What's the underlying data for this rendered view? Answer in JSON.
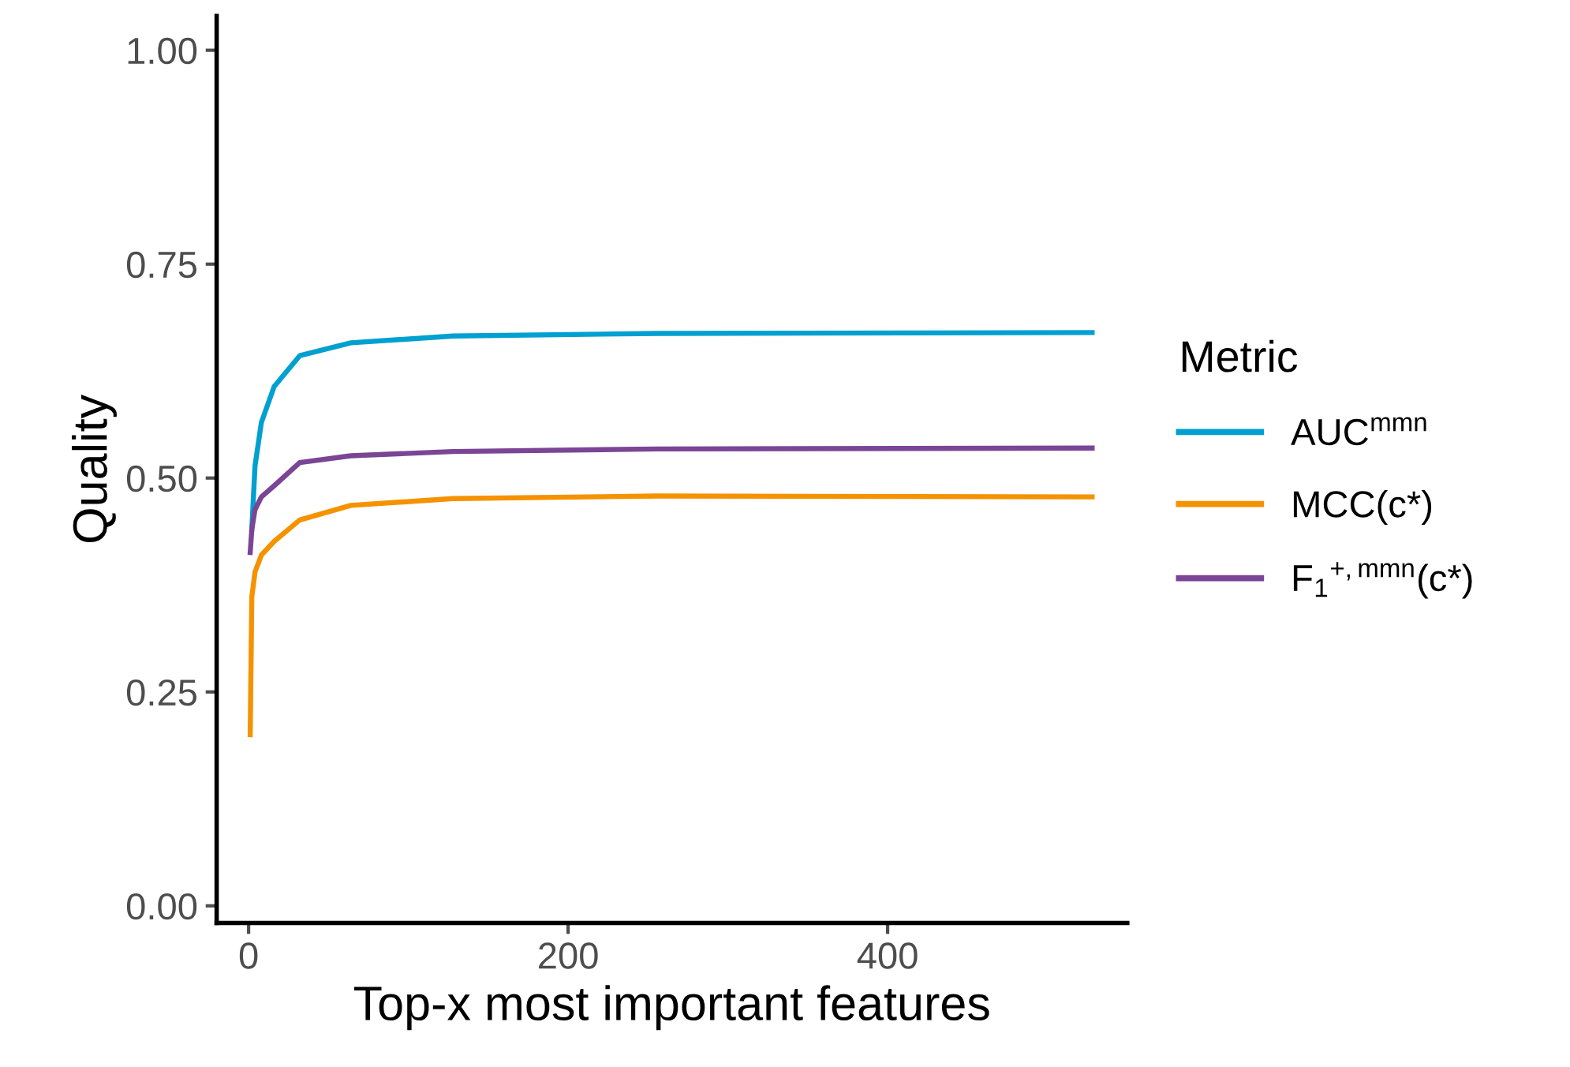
{
  "chart_data": {
    "type": "line",
    "xlabel": "Top-x most important features",
    "ylabel": "Quality",
    "legend_title": "Metric",
    "x": [
      1,
      2,
      4,
      8,
      16,
      32,
      64,
      128,
      256,
      528
    ],
    "series": [
      {
        "name": "AUC$^{mmn}$",
        "color": "#00a0d0",
        "values": [
          null,
          0.44,
          0.514,
          0.565,
          0.607,
          0.643,
          0.658,
          0.666,
          0.669,
          0.67
        ]
      },
      {
        "name": "MCC(c*)",
        "color": "#f59200",
        "values": [
          0.2,
          0.361,
          0.39,
          0.41,
          0.426,
          0.451,
          0.468,
          0.476,
          0.479,
          0.478
        ]
      },
      {
        "name": "F$_{1}$$^{+,mmn}$(c*)",
        "color": "#7b4596",
        "values": [
          0.413,
          0.44,
          0.463,
          0.478,
          0.491,
          0.518,
          0.526,
          0.531,
          0.534,
          0.535
        ]
      }
    ],
    "xlim": [
      -20,
      550
    ],
    "xticks": [
      0,
      200,
      400
    ],
    "ylim": [
      -0.02,
      1.04
    ],
    "yticks": [
      {
        "value": 0,
        "label": "0.00"
      },
      {
        "value": 0.25,
        "label": "0.25"
      },
      {
        "value": 0.5,
        "label": "0.50"
      },
      {
        "value": 0.75,
        "label": "0.75"
      },
      {
        "value": 1,
        "label": "1.00"
      }
    ],
    "grid": false,
    "legend": "right",
    "marker": "none",
    "line_style": "solid"
  }
}
